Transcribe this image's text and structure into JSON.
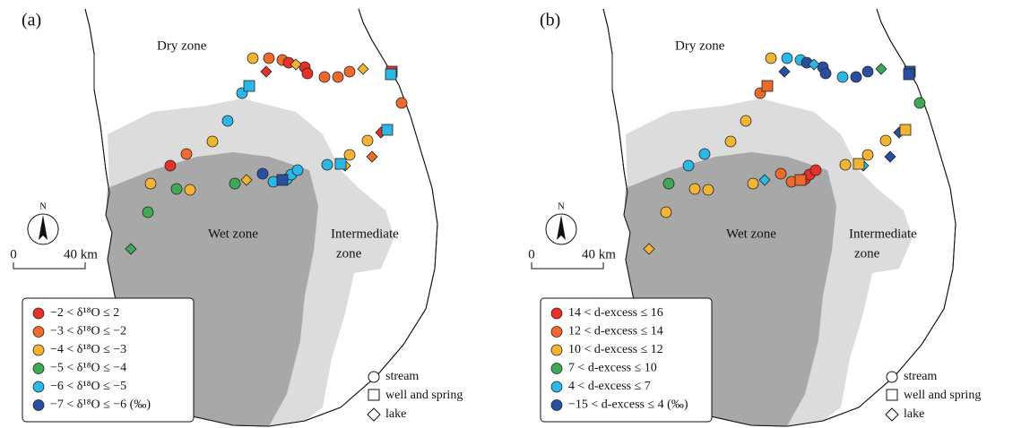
{
  "panels": [
    {
      "label": "(a)",
      "dry_zone": "Dry zone",
      "wet_zone": "Wet zone",
      "intermediate_zone": [
        "Intermediate",
        "zone"
      ],
      "north": "N",
      "scale": [
        "0",
        "40 km"
      ],
      "classes": [
        {
          "label": "−2 < δ¹⁸O ≤ 2",
          "color": "#e8302a"
        },
        {
          "label": "−3 < δ¹⁸O ≤ −2",
          "color": "#ee6a2c"
        },
        {
          "label": "−4 < δ¹⁸O ≤ −3",
          "color": "#f2b531"
        },
        {
          "label": "−5 < δ¹⁸O ≤ −4",
          "color": "#3fa957"
        },
        {
          "label": "−6 < δ¹⁸O ≤ −5",
          "color": "#2bb8e6"
        },
        {
          "label": "−7 < δ¹⁸O ≤ −6 (‰)",
          "color": "#2a4fa0"
        }
      ],
      "types": [
        "stream",
        "well and spring",
        "lake"
      ]
    },
    {
      "label": "(b)",
      "dry_zone": "Dry zone",
      "wet_zone": "Wet zone",
      "intermediate_zone": [
        "Intermediate",
        "zone"
      ],
      "north": "N",
      "scale": [
        "0",
        "40 km"
      ],
      "classes": [
        {
          "label": "14 < d-excess ≤ 16",
          "color": "#e8302a"
        },
        {
          "label": "12 < d-excess ≤ 14",
          "color": "#ee6a2c"
        },
        {
          "label": "10 < d-excess ≤ 12",
          "color": "#f2b531"
        },
        {
          "label": "7 < d-excess ≤ 10",
          "color": "#3fa957"
        },
        {
          "label": "4 < d-excess ≤ 7",
          "color": "#2bb8e6"
        },
        {
          "label": "−15 < d-excess ≤ 4 (‰)",
          "color": "#2a4fa0"
        }
      ],
      "types": [
        "stream",
        "well and spring",
        "lake"
      ]
    }
  ]
}
